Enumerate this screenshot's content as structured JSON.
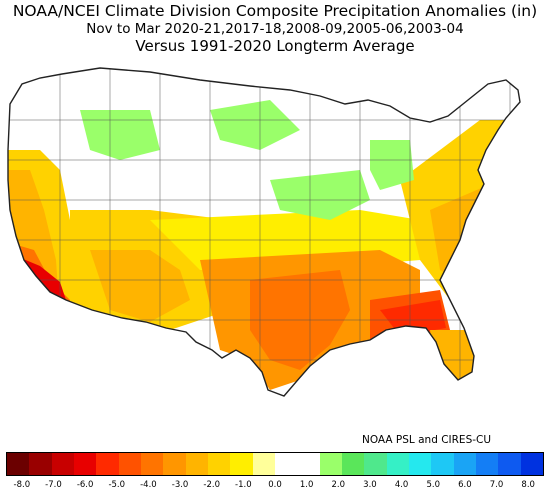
{
  "title": {
    "line1": "NOAA/NCEI Climate Division Composite Precipitation Anomalies (in)",
    "line2": "Nov to Mar  2020-21,2017-18,2008-09,2005-06,2003-04",
    "line3": "Versus 1991-2020 Longterm Average"
  },
  "credit": "NOAA PSL and CIRES-CU",
  "colorbar": {
    "colors": [
      "#6b0000",
      "#990000",
      "#c80000",
      "#e80000",
      "#ff2a00",
      "#ff5200",
      "#ff7400",
      "#ff9600",
      "#ffb400",
      "#ffd200",
      "#ffee00",
      "#ffff9a",
      "#ffffff",
      "#ffffff",
      "#9aff6a",
      "#5ae65a",
      "#4fe88c",
      "#35f0c6",
      "#25e8ee",
      "#1ec8f5",
      "#1aa4f5",
      "#147ef5",
      "#0e5af0",
      "#0032e0"
    ],
    "ticks": [
      "-8.0",
      "-7.0",
      "-6.0",
      "-5.0",
      "-4.0",
      "-3.0",
      "-2.0",
      "-1.0",
      "0.0",
      "1.0",
      "2.0",
      "3.0",
      "4.0",
      "5.0",
      "6.0",
      "7.0",
      "8.0"
    ]
  },
  "legend_scale": {
    "min": -8.0,
    "max": 8.0,
    "units": "in"
  },
  "regions": [
    {
      "name": "Pacific Northwest coast",
      "class": "0 to 1 / -1 to 0 mix"
    },
    {
      "name": "Northern Rockies",
      "class": "0 to +1 in (light green)"
    },
    {
      "name": "Great Lakes / Upper Midwest",
      "class": "0 to +1 in (light green)"
    },
    {
      "name": "California coast",
      "class": "-1 to -3 in"
    },
    {
      "name": "Southern California",
      "class": "-5 to -6 in"
    },
    {
      "name": "Southwest",
      "class": "-1 to -3 in"
    },
    {
      "name": "Texas Gulf / Lower Mississippi",
      "class": "-3 to -5 in"
    },
    {
      "name": "Georgia / Alabama",
      "class": "-4 to -6 in"
    },
    {
      "name": "Florida",
      "class": "-2 to -4 in"
    },
    {
      "name": "Mid-Atlantic / Northeast",
      "class": "-1 to -3 in"
    }
  ]
}
